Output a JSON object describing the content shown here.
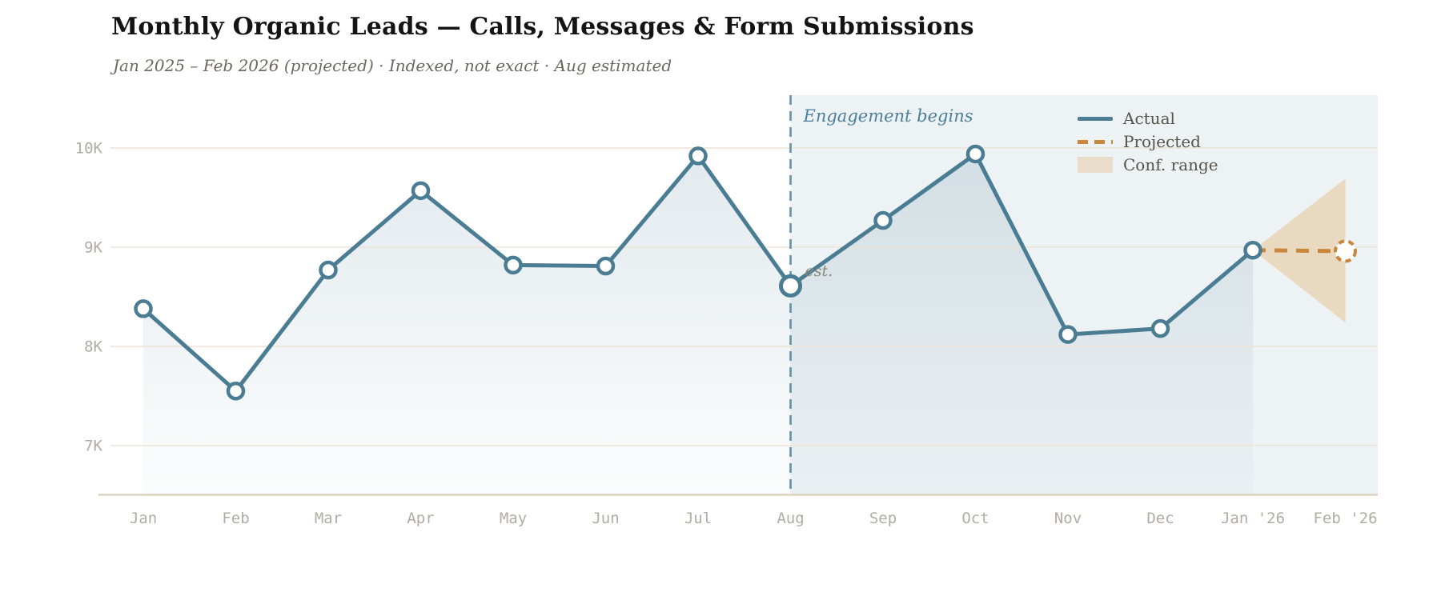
{
  "header": {
    "title": "Monthly Organic Leads — Calls, Messages & Form Submissions",
    "subtitle": "Jan 2025 – Feb 2026 (projected) · Indexed, not exact · Aug estimated"
  },
  "legend": {
    "items": [
      {
        "label": "Actual",
        "swatch": "solid-line"
      },
      {
        "label": "Projected",
        "swatch": "dashed-line"
      },
      {
        "label": "Conf. range",
        "swatch": "filled-box"
      }
    ]
  },
  "annotations": {
    "engagement_label": "Engagement begins",
    "estimated_label": "est."
  },
  "chart_data": {
    "type": "line",
    "title": "Monthly Organic Leads — Calls, Messages & Form Submissions",
    "subtitle": "Jan 2025 – Feb 2026 (projected) · Indexed, not exact · Aug estimated",
    "categories": [
      "Jan",
      "Feb",
      "Mar",
      "Apr",
      "May",
      "Jun",
      "Jul",
      "Aug",
      "Sep",
      "Oct",
      "Nov",
      "Dec",
      "Jan '26",
      "Feb '26"
    ],
    "series": [
      {
        "name": "Actual",
        "values": [
          8.38,
          7.55,
          8.77,
          9.57,
          8.82,
          8.81,
          9.92,
          8.61,
          9.27,
          9.94,
          8.12,
          8.18,
          8.97,
          null
        ]
      },
      {
        "name": "Projected",
        "values": [
          null,
          null,
          null,
          null,
          null,
          null,
          null,
          null,
          null,
          null,
          null,
          null,
          8.97,
          8.96
        ]
      }
    ],
    "units": "thousands of leads (indexed)",
    "y_ticks": [
      10,
      9,
      8,
      7
    ],
    "y_tick_labels": [
      "10K",
      "9K",
      "8K",
      "7K"
    ],
    "ylim": [
      6.5,
      10.6
    ],
    "grid": true,
    "legend_position": "top-right",
    "estimated_category": "Aug",
    "engagement_marker": {
      "category": "Aug",
      "label": "Engagement begins"
    },
    "confidence_range": {
      "category": "Feb '26",
      "low": 8.24,
      "high": 9.69
    }
  },
  "colors": {
    "actual_line": "#4a7c93",
    "projected_line": "#c8873a",
    "conf_fill": "#e9d9c1",
    "legend_conf_swatch": "#e9dcc8",
    "engagement_panel": "#edf2f4",
    "engagement_vline": "#6290a6",
    "annotation_text": "#4d7e9a",
    "estimated_text": "#8b8679",
    "gridline": "#ece3d6",
    "axis_line": "#ddd2c1",
    "tick_text": "#b2aca2",
    "title_text": "#141414",
    "subtitle_text": "#6d685e",
    "legend_text": "#57534a"
  }
}
